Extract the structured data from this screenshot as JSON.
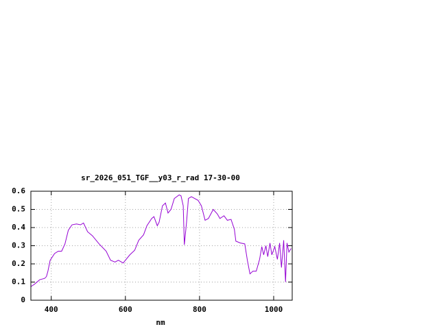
{
  "chart_data": {
    "type": "line",
    "title": "sr_2026_051_TGF__y03_r_rad 17-30-00",
    "x_label": "nm",
    "x": [
      345,
      354,
      369,
      382,
      387,
      391,
      397,
      409,
      419,
      428,
      437,
      446,
      456,
      468,
      479,
      487,
      498,
      511,
      529,
      548,
      560,
      572,
      581,
      594,
      612,
      625,
      636,
      649,
      658,
      671,
      677,
      686,
      691,
      700,
      708,
      715,
      723,
      732,
      745,
      750,
      756,
      759,
      765,
      770,
      778,
      796,
      805,
      815,
      824,
      837,
      848,
      855,
      866,
      875,
      885,
      894,
      898,
      910,
      922,
      929,
      936,
      944,
      953,
      962,
      968,
      973,
      979,
      984,
      990,
      995,
      1003,
      1010,
      1016,
      1021,
      1027,
      1032,
      1036,
      1041,
      1047
    ],
    "series": [
      {
        "color": "#9400d3",
        "values": [
          0.075,
          0.087,
          0.113,
          0.12,
          0.13,
          0.16,
          0.22,
          0.257,
          0.27,
          0.27,
          0.31,
          0.385,
          0.415,
          0.42,
          0.415,
          0.425,
          0.377,
          0.355,
          0.31,
          0.27,
          0.22,
          0.21,
          0.22,
          0.205,
          0.25,
          0.275,
          0.33,
          0.36,
          0.41,
          0.45,
          0.46,
          0.41,
          0.43,
          0.52,
          0.535,
          0.48,
          0.5,
          0.56,
          0.58,
          0.575,
          0.52,
          0.305,
          0.43,
          0.56,
          0.57,
          0.55,
          0.52,
          0.44,
          0.45,
          0.5,
          0.475,
          0.45,
          0.465,
          0.44,
          0.445,
          0.39,
          0.325,
          0.315,
          0.31,
          0.22,
          0.145,
          0.16,
          0.16,
          0.225,
          0.295,
          0.25,
          0.3,
          0.24,
          0.315,
          0.25,
          0.295,
          0.225,
          0.315,
          0.18,
          0.33,
          0.1,
          0.315,
          0.265,
          0.285
        ]
      }
    ],
    "xlim": [
      345,
      1050
    ],
    "ylim": [
      0,
      0.6
    ],
    "xticks": [
      400,
      600,
      800,
      1000
    ],
    "yticks": [
      0,
      0.1,
      0.2,
      0.3,
      0.4,
      0.5,
      0.6
    ],
    "grid": true
  }
}
